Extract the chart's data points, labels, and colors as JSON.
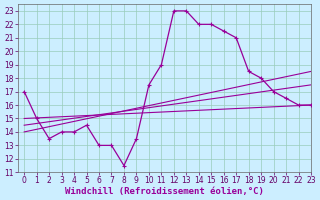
{
  "xlabel": "Windchill (Refroidissement éolien,°C)",
  "xlim": [
    -0.5,
    23
  ],
  "ylim": [
    11,
    23.5
  ],
  "xticks": [
    0,
    1,
    2,
    3,
    4,
    5,
    6,
    7,
    8,
    9,
    10,
    11,
    12,
    13,
    14,
    15,
    16,
    17,
    18,
    19,
    20,
    21,
    22,
    23
  ],
  "yticks": [
    11,
    12,
    13,
    14,
    15,
    16,
    17,
    18,
    19,
    20,
    21,
    22,
    23
  ],
  "main_x": [
    0,
    1,
    2,
    3,
    4,
    5,
    6,
    7,
    8,
    9,
    10,
    11,
    12,
    13,
    14,
    15,
    16,
    17,
    18,
    19,
    20,
    21,
    22,
    23
  ],
  "main_y": [
    17,
    15,
    13.5,
    14,
    14,
    14.5,
    13,
    13,
    11.5,
    13.5,
    17.5,
    19,
    23,
    23,
    22,
    22,
    21.5,
    21,
    18.5,
    18,
    17,
    16.5,
    16,
    16
  ],
  "line1_x": [
    0,
    23
  ],
  "line1_y": [
    15.0,
    16.0
  ],
  "line2_x": [
    0,
    23
  ],
  "line2_y": [
    14.5,
    17.5
  ],
  "line3_x": [
    0,
    23
  ],
  "line3_y": [
    14.0,
    18.5
  ],
  "color_main": "#990099",
  "color_lines": "#990099",
  "bg_color": "#cceeff",
  "grid_color": "#99ccbb",
  "xlabel_fontsize": 6.5,
  "tick_fontsize": 5.5
}
